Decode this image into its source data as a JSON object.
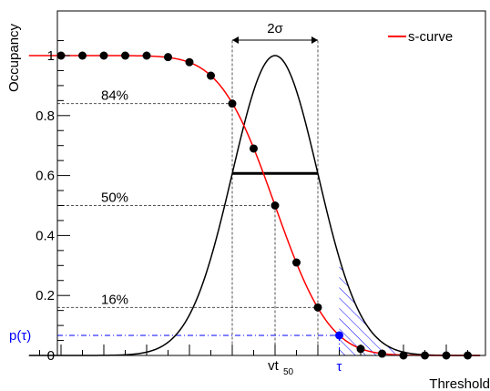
{
  "chart_data": {
    "type": "line",
    "ylabel": "Occupancy",
    "xlabel": "Threshold",
    "ylim": [
      0,
      1.1
    ],
    "y_ticks": [
      {
        "v": 0,
        "label": "0"
      },
      {
        "v": 0.2,
        "label": "0.2"
      },
      {
        "v": 0.4,
        "label": "0.4"
      },
      {
        "v": 0.6,
        "label": "0.6"
      },
      {
        "v": 0.8,
        "label": "0.8"
      },
      {
        "v": 1,
        "label": "1"
      }
    ],
    "x_domain": [
      -5.75,
      4.8
    ],
    "legend": {
      "label": "s-curve",
      "color": "#ff0000",
      "position": "top-right"
    },
    "series": [
      {
        "name": "s-curve",
        "color": "#ff0000",
        "points": [
          {
            "x": -5.0,
            "y": 1.0
          },
          {
            "x": -4.5,
            "y": 1.0
          },
          {
            "x": -4.0,
            "y": 1.0
          },
          {
            "x": -3.5,
            "y": 1.0
          },
          {
            "x": -3.0,
            "y": 1.0
          },
          {
            "x": -2.5,
            "y": 0.995
          },
          {
            "x": -2.0,
            "y": 0.978
          },
          {
            "x": -1.5,
            "y": 0.933
          },
          {
            "x": -1.0,
            "y": 0.84
          },
          {
            "x": -0.5,
            "y": 0.69
          },
          {
            "x": 0.0,
            "y": 0.5
          },
          {
            "x": 0.5,
            "y": 0.31
          },
          {
            "x": 1.0,
            "y": 0.16
          },
          {
            "x": 1.5,
            "y": 0.067
          },
          {
            "x": 2.0,
            "y": 0.022
          },
          {
            "x": 2.5,
            "y": 0.006
          },
          {
            "x": 3.0,
            "y": 0.0
          },
          {
            "x": 3.5,
            "y": 0.0
          },
          {
            "x": 4.0,
            "y": 0.0
          },
          {
            "x": 4.5,
            "y": 0.0
          }
        ]
      }
    ],
    "gaussian": {
      "mean": 0,
      "sigma": 1,
      "peak": 1.0,
      "color": "#000000"
    },
    "sigma_bar": {
      "x1": -1,
      "x2": 1,
      "y": 0.607
    },
    "two_sigma": {
      "label": "2σ",
      "x1": -1,
      "x2": 1,
      "y": 1.05
    },
    "levels": [
      {
        "label": "84%",
        "y": 0.84,
        "x_end": -1
      },
      {
        "label": "50%",
        "y": 0.5,
        "x_end": 0
      },
      {
        "label": "16%",
        "y": 0.16,
        "x_end": 1
      }
    ],
    "tau": {
      "x": 1.5,
      "y": 0.067,
      "label": "τ",
      "y_label": "p(τ)",
      "color": "#0000ff"
    },
    "vt50": {
      "x": 0,
      "label": "vt",
      "sub": "50"
    }
  }
}
